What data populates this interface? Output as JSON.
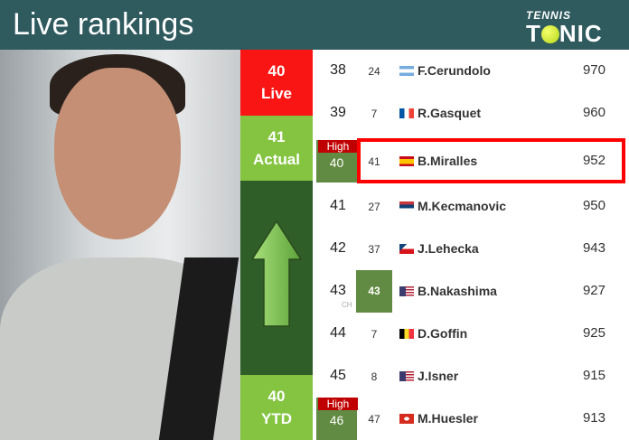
{
  "header": {
    "title": "Live rankings",
    "logo_top": "TENNIS",
    "logo_bottom": "TONIC"
  },
  "side": {
    "live": {
      "value": "40",
      "label": "Live"
    },
    "actual": {
      "value": "41",
      "label": "Actual"
    },
    "ytd": {
      "value": "40",
      "label": "YTD"
    },
    "arrow": "up-arrow-icon",
    "colors": {
      "live": "#fa1515",
      "actual": "#84c441",
      "panel": "#2f5e28"
    }
  },
  "rows": [
    {
      "rank": "38",
      "prev": "24",
      "country": "argentina",
      "name": "F.Cerundolo",
      "points": "970"
    },
    {
      "rank": "39",
      "prev": "7",
      "country": "france",
      "name": "R.Gasquet",
      "points": "960"
    },
    {
      "rank": "",
      "high_label": "High",
      "high_value": "40",
      "prev": "41",
      "country": "spain",
      "name": "B.Miralles",
      "points": "952",
      "selected": true
    },
    {
      "rank": "41",
      "prev": "27",
      "country": "serbia",
      "name": "M.Kecmanovic",
      "points": "950"
    },
    {
      "rank": "42",
      "prev": "37",
      "country": "czechia",
      "name": "J.Lehecka",
      "points": "943"
    },
    {
      "rank": "43",
      "ch_label": "CH",
      "ch_value": "43",
      "country": "usa",
      "name": "B.Nakashima",
      "points": "927"
    },
    {
      "rank": "44",
      "prev": "7",
      "country": "belgium",
      "name": "D.Goffin",
      "points": "925"
    },
    {
      "rank": "45",
      "prev": "8",
      "country": "usa",
      "name": "J.Isner",
      "points": "915"
    },
    {
      "rank": "",
      "high_label": "High",
      "high_value": "46",
      "prev": "47",
      "country": "switzerland",
      "name": "M.Huesler",
      "points": "913"
    }
  ]
}
